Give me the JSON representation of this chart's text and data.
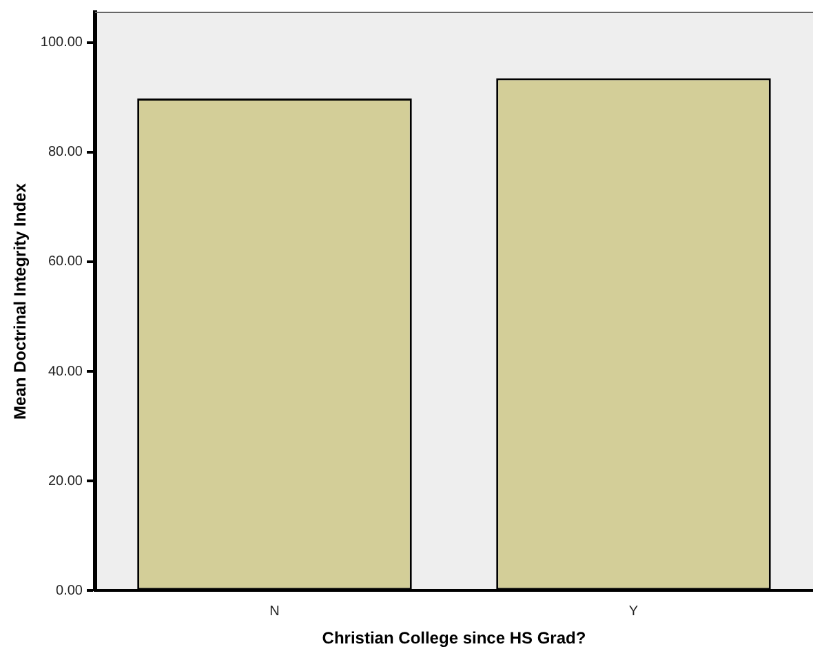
{
  "chart_data": {
    "type": "bar",
    "xlabel": "Christian College since HS Grad?",
    "ylabel": "Mean Doctrinal Integrity Index",
    "categories": [
      "N",
      "Y"
    ],
    "values": [
      89.8,
      93.5
    ],
    "color": "#d3ce98",
    "ylim": [
      0,
      105.5
    ],
    "yticks": [
      {
        "value": 0,
        "label": "0.00"
      },
      {
        "value": 20,
        "label": "20.00"
      },
      {
        "value": 40,
        "label": "40.00"
      },
      {
        "value": 60,
        "label": "60.00"
      },
      {
        "value": 80,
        "label": "80.00"
      },
      {
        "value": 100,
        "label": "100.00"
      }
    ],
    "grid": false,
    "legend": false
  }
}
